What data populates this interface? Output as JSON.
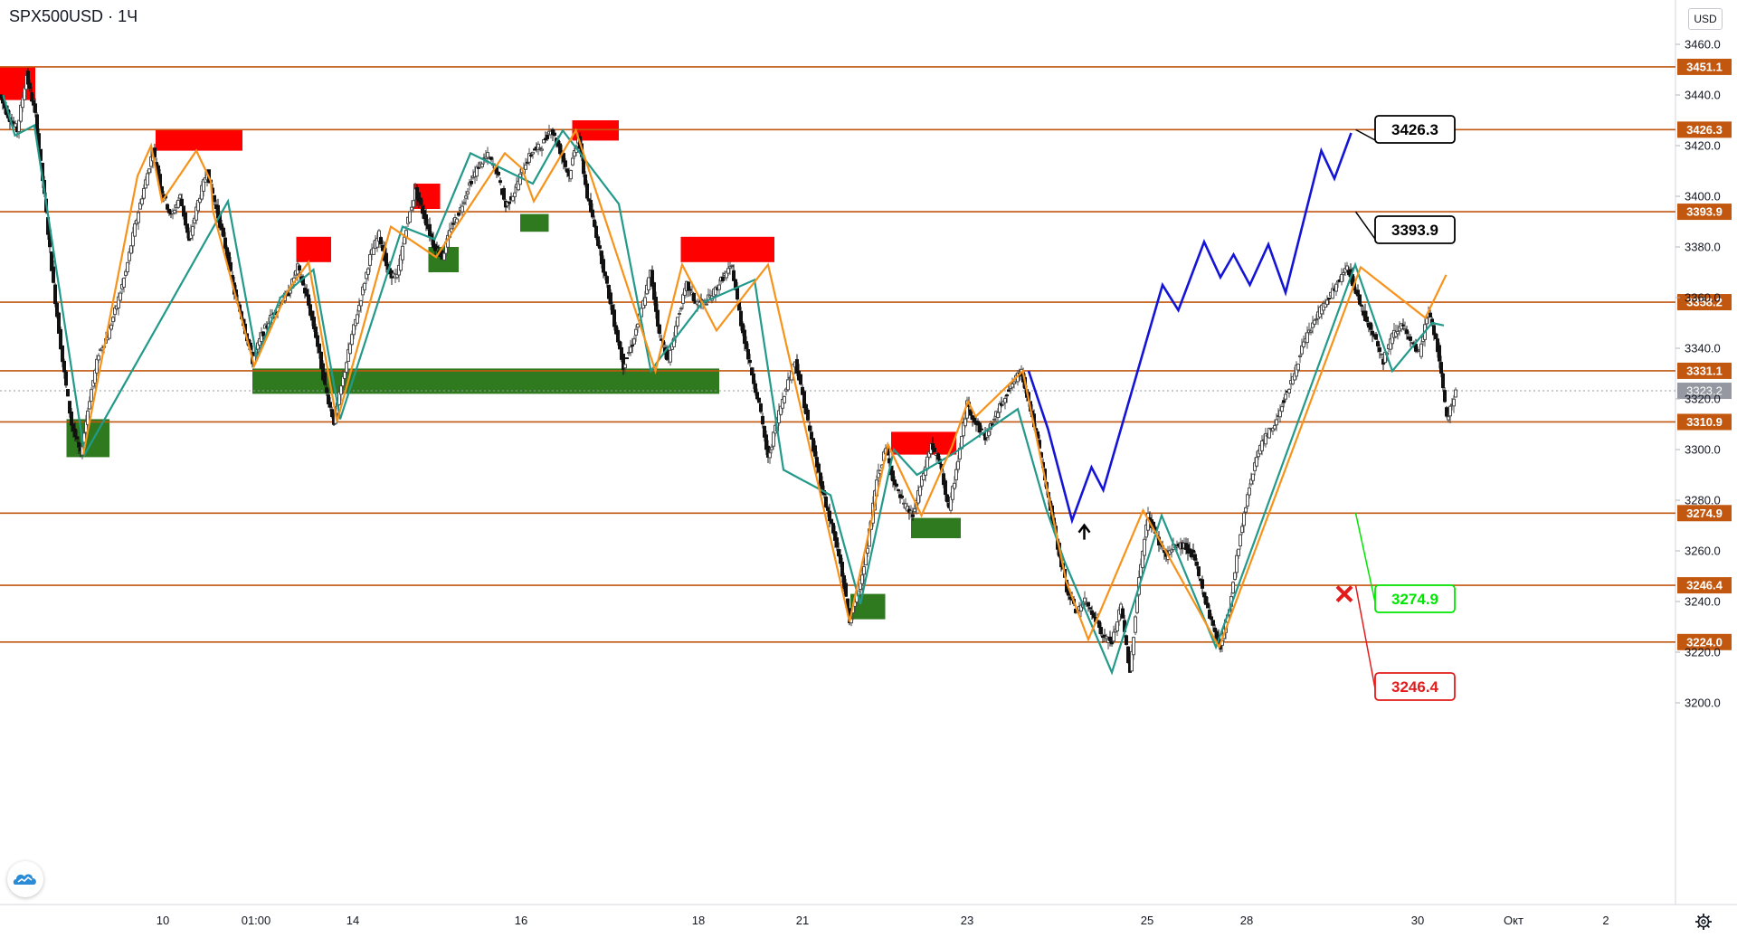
{
  "header": {
    "symbol": "SPX500USD",
    "separator": "·",
    "interval": "1Ч"
  },
  "price_axis": {
    "currency": "USD",
    "ticks": [
      "3460.0",
      "3440.0",
      "3420.0",
      "3400.0",
      "3380.0",
      "3360.0",
      "3340.0",
      "3320.0",
      "3300.0",
      "3280.0",
      "3260.0",
      "3240.0",
      "3220.0",
      "3200.0"
    ],
    "level_labels": [
      "3451.1",
      "3426.3",
      "3393.9",
      "3358.2",
      "3331.1",
      "3310.9",
      "3274.9",
      "3246.4",
      "3224.0"
    ],
    "current_price_label": "3323.2"
  },
  "time_axis": {
    "ticks": [
      "10",
      "01:00",
      "14",
      "16",
      "18",
      "21",
      "23",
      "25",
      "28",
      "30",
      "Окт",
      "2"
    ]
  },
  "callouts": {
    "target_high": "3426.3",
    "target_mid": "3393.9",
    "target_low": "3274.9",
    "stop": "3246.4"
  },
  "colors": {
    "level_line": "#c25710",
    "level_badge": "#c25710",
    "zigzag_orange": "#f7931a",
    "zigzag_teal": "#22998a",
    "forecast_blue": "#1414d6",
    "supply_red": "#ff0000",
    "demand_green": "#2f7a1f",
    "candle_up": "#555555",
    "candle_down": "#111111",
    "current_badge": "#9598a1",
    "callout_green": "#00e600",
    "callout_red": "#e31b1b"
  },
  "chart_data": {
    "type": "candlestick",
    "title": "",
    "symbol": "SPX500USD",
    "interval": "1Ч",
    "ylim": [
      3193,
      3476
    ],
    "x_ticks": [
      "10",
      "01:00",
      "14",
      "16",
      "18",
      "21",
      "23",
      "25",
      "28",
      "30",
      "Окт",
      "2"
    ],
    "horizontal_levels": [
      3451.1,
      3426.3,
      3393.9,
      3358.2,
      3331.1,
      3310.9,
      3274.9,
      3246.4,
      3224.0
    ],
    "current_price": 3323.2,
    "price_path": [
      [
        0,
        3440
      ],
      [
        0.2,
        3432
      ],
      [
        0.4,
        3426
      ],
      [
        0.6,
        3448
      ],
      [
        0.8,
        3432
      ],
      [
        1.0,
        3400
      ],
      [
        1.2,
        3365
      ],
      [
        1.4,
        3335
      ],
      [
        1.6,
        3310
      ],
      [
        1.8,
        3298
      ],
      [
        2.0,
        3320
      ],
      [
        2.2,
        3338
      ],
      [
        2.4,
        3345
      ],
      [
        2.6,
        3357
      ],
      [
        2.8,
        3370
      ],
      [
        3.0,
        3388
      ],
      [
        3.2,
        3403
      ],
      [
        3.4,
        3418
      ],
      [
        3.6,
        3402
      ],
      [
        3.8,
        3392
      ],
      [
        4.0,
        3400
      ],
      [
        4.2,
        3382
      ],
      [
        4.4,
        3398
      ],
      [
        4.6,
        3410
      ],
      [
        4.8,
        3395
      ],
      [
        5.0,
        3380
      ],
      [
        5.2,
        3362
      ],
      [
        5.4,
        3350
      ],
      [
        5.6,
        3335
      ],
      [
        5.8,
        3345
      ],
      [
        6.0,
        3352
      ],
      [
        6.2,
        3358
      ],
      [
        6.4,
        3362
      ],
      [
        6.6,
        3372
      ],
      [
        6.8,
        3360
      ],
      [
        7.0,
        3345
      ],
      [
        7.2,
        3325
      ],
      [
        7.4,
        3311
      ],
      [
        7.6,
        3328
      ],
      [
        7.8,
        3345
      ],
      [
        8.0,
        3360
      ],
      [
        8.2,
        3376
      ],
      [
        8.4,
        3385
      ],
      [
        8.6,
        3370
      ],
      [
        8.8,
        3368
      ],
      [
        9.0,
        3388
      ],
      [
        9.2,
        3402
      ],
      [
        9.4,
        3392
      ],
      [
        9.6,
        3381
      ],
      [
        9.8,
        3376
      ],
      [
        10.0,
        3388
      ],
      [
        10.2,
        3395
      ],
      [
        10.4,
        3405
      ],
      [
        10.6,
        3412
      ],
      [
        10.8,
        3416
      ],
      [
        11.0,
        3410
      ],
      [
        11.2,
        3396
      ],
      [
        11.4,
        3402
      ],
      [
        11.6,
        3412
      ],
      [
        11.8,
        3418
      ],
      [
        12.0,
        3420
      ],
      [
        12.2,
        3427
      ],
      [
        12.4,
        3418
      ],
      [
        12.6,
        3408
      ],
      [
        12.8,
        3424
      ],
      [
        13.0,
        3400
      ],
      [
        13.2,
        3385
      ],
      [
        13.4,
        3368
      ],
      [
        13.6,
        3350
      ],
      [
        13.8,
        3333
      ],
      [
        14.0,
        3342
      ],
      [
        14.2,
        3355
      ],
      [
        14.4,
        3370
      ],
      [
        14.6,
        3345
      ],
      [
        14.8,
        3335
      ],
      [
        15.0,
        3352
      ],
      [
        15.2,
        3365
      ],
      [
        15.4,
        3358
      ],
      [
        15.6,
        3358
      ],
      [
        15.8,
        3362
      ],
      [
        16.0,
        3368
      ],
      [
        16.2,
        3372
      ],
      [
        16.4,
        3350
      ],
      [
        16.6,
        3333
      ],
      [
        16.8,
        3318
      ],
      [
        17.0,
        3296
      ],
      [
        17.2,
        3312
      ],
      [
        17.4,
        3325
      ],
      [
        17.6,
        3335
      ],
      [
        17.8,
        3318
      ],
      [
        18.0,
        3300
      ],
      [
        18.2,
        3284
      ],
      [
        18.4,
        3270
      ],
      [
        18.6,
        3255
      ],
      [
        18.8,
        3232
      ],
      [
        19.0,
        3245
      ],
      [
        19.2,
        3262
      ],
      [
        19.4,
        3288
      ],
      [
        19.6,
        3300
      ],
      [
        19.8,
        3286
      ],
      [
        20.0,
        3278
      ],
      [
        20.2,
        3274
      ],
      [
        20.4,
        3288
      ],
      [
        20.6,
        3302
      ],
      [
        20.8,
        3294
      ],
      [
        21.0,
        3276
      ],
      [
        21.2,
        3296
      ],
      [
        21.4,
        3318
      ],
      [
        21.6,
        3310
      ],
      [
        21.8,
        3305
      ],
      [
        22.0,
        3312
      ],
      [
        22.2,
        3320
      ],
      [
        22.4,
        3326
      ],
      [
        22.6,
        3331
      ],
      [
        22.8,
        3316
      ],
      [
        23.0,
        3300
      ],
      [
        23.2,
        3280
      ],
      [
        23.4,
        3262
      ],
      [
        23.6,
        3245
      ],
      [
        23.8,
        3236
      ],
      [
        24.0,
        3240
      ],
      [
        24.2,
        3235
      ],
      [
        24.4,
        3226
      ],
      [
        24.6,
        3224
      ],
      [
        24.8,
        3238
      ],
      [
        25.0,
        3212
      ],
      [
        25.2,
        3250
      ],
      [
        25.4,
        3274
      ],
      [
        25.6,
        3265
      ],
      [
        25.8,
        3258
      ],
      [
        26.0,
        3262
      ],
      [
        26.2,
        3262
      ],
      [
        26.4,
        3258
      ],
      [
        26.6,
        3245
      ],
      [
        26.8,
        3232
      ],
      [
        27.0,
        3222
      ],
      [
        27.2,
        3238
      ],
      [
        27.4,
        3262
      ],
      [
        27.6,
        3282
      ],
      [
        27.8,
        3298
      ],
      [
        28.0,
        3305
      ],
      [
        28.2,
        3310
      ],
      [
        28.4,
        3320
      ],
      [
        28.6,
        3328
      ],
      [
        28.8,
        3340
      ],
      [
        29.0,
        3348
      ],
      [
        29.2,
        3355
      ],
      [
        29.4,
        3360
      ],
      [
        29.6,
        3366
      ],
      [
        29.8,
        3372
      ],
      [
        30.0,
        3362
      ],
      [
        30.2,
        3352
      ],
      [
        30.4,
        3345
      ],
      [
        30.6,
        3335
      ],
      [
        30.8,
        3345
      ],
      [
        31.0,
        3350
      ],
      [
        31.2,
        3342
      ],
      [
        31.4,
        3338
      ],
      [
        31.6,
        3355
      ],
      [
        31.8,
        3340
      ],
      [
        32.0,
        3312
      ],
      [
        32.2,
        3323
      ]
    ],
    "zigzag_orange": [
      [
        1.84,
        3298
      ],
      [
        3.04,
        3408
      ],
      [
        3.34,
        3420
      ],
      [
        3.58,
        3398
      ],
      [
        4.34,
        3418
      ],
      [
        4.66,
        3406
      ],
      [
        4.71,
        3394
      ],
      [
        5.62,
        3333
      ],
      [
        6.34,
        3362
      ],
      [
        6.82,
        3374
      ],
      [
        7.45,
        3311
      ],
      [
        8.64,
        3388
      ],
      [
        9.64,
        3376
      ],
      [
        11.16,
        3417
      ],
      [
        11.54,
        3411
      ],
      [
        11.8,
        3398
      ],
      [
        12.73,
        3426
      ],
      [
        14.49,
        3331
      ],
      [
        15.08,
        3373
      ],
      [
        15.84,
        3347
      ],
      [
        16.98,
        3373
      ],
      [
        18.78,
        3232
      ],
      [
        19.63,
        3302
      ],
      [
        20.37,
        3274
      ],
      [
        21.04,
        3301
      ],
      [
        21.4,
        3319
      ],
      [
        21.57,
        3313
      ],
      [
        22.61,
        3331
      ],
      [
        23.57,
        3248
      ],
      [
        24.06,
        3225
      ],
      [
        25.27,
        3276
      ],
      [
        26.95,
        3222
      ],
      [
        30.08,
        3372
      ],
      [
        31.51,
        3352
      ],
      [
        31.97,
        3369
      ]
    ],
    "zigzag_teal": [
      [
        0.07,
        3440
      ],
      [
        0.33,
        3424
      ],
      [
        0.76,
        3428
      ],
      [
        1.87,
        3298
      ],
      [
        5.04,
        3398
      ],
      [
        5.68,
        3336
      ],
      [
        6.2,
        3360
      ],
      [
        6.93,
        3371
      ],
      [
        7.52,
        3312
      ],
      [
        8.9,
        3388
      ],
      [
        9.61,
        3383
      ],
      [
        10.4,
        3417
      ],
      [
        11.78,
        3405
      ],
      [
        12.44,
        3426
      ],
      [
        13.68,
        3397
      ],
      [
        14.39,
        3331
      ],
      [
        14.63,
        3337
      ],
      [
        15.53,
        3358
      ],
      [
        16.68,
        3367
      ],
      [
        17.32,
        3292
      ],
      [
        18.36,
        3282
      ],
      [
        19.02,
        3239
      ],
      [
        19.76,
        3300
      ],
      [
        20.27,
        3290
      ],
      [
        21.04,
        3298
      ],
      [
        22.5,
        3316
      ],
      [
        23.12,
        3277
      ],
      [
        23.53,
        3256
      ],
      [
        24.58,
        3212
      ],
      [
        25.68,
        3274
      ],
      [
        26.88,
        3222
      ],
      [
        29.96,
        3373
      ],
      [
        30.78,
        3331
      ],
      [
        31.66,
        3350
      ],
      [
        31.92,
        3349
      ]
    ],
    "forecast_path": [
      [
        22.74,
        3331
      ],
      [
        23.17,
        3308
      ],
      [
        23.7,
        3272
      ],
      [
        24.13,
        3293
      ],
      [
        24.39,
        3284
      ],
      [
        25.7,
        3365
      ],
      [
        26.05,
        3355
      ],
      [
        26.62,
        3382
      ],
      [
        26.98,
        3368
      ],
      [
        27.27,
        3377
      ],
      [
        27.63,
        3365
      ],
      [
        28.04,
        3381
      ],
      [
        28.42,
        3362
      ],
      [
        29.21,
        3418
      ],
      [
        29.5,
        3407
      ],
      [
        29.87,
        3425
      ]
    ],
    "supply_zones": [
      {
        "x0": 0.0,
        "x1": 0.78,
        "y0": 3451.1,
        "y1": 3438
      },
      {
        "x0": 3.44,
        "x1": 5.36,
        "y0": 3426.3,
        "y1": 3418
      },
      {
        "x0": 9.14,
        "x1": 9.73,
        "y0": 3405,
        "y1": 3395
      },
      {
        "x0": 6.55,
        "x1": 7.32,
        "y0": 3384,
        "y1": 3374
      },
      {
        "x0": 12.65,
        "x1": 13.68,
        "y0": 3430,
        "y1": 3422
      },
      {
        "x0": 15.05,
        "x1": 17.12,
        "y0": 3384,
        "y1": 3374
      },
      {
        "x0": 19.7,
        "x1": 21.14,
        "y0": 3307,
        "y1": 3298
      }
    ],
    "demand_zones": [
      {
        "x0": 1.47,
        "x1": 2.42,
        "y0": 3312,
        "y1": 3297
      },
      {
        "x0": 9.47,
        "x1": 10.14,
        "y0": 3380,
        "y1": 3370
      },
      {
        "x0": 11.5,
        "x1": 12.13,
        "y0": 3393,
        "y1": 3386
      },
      {
        "x0": 5.58,
        "x1": 15.9,
        "y0": 3332,
        "y1": 3322
      },
      {
        "x0": 18.8,
        "x1": 19.57,
        "y0": 3243,
        "y1": 3233
      },
      {
        "x0": 20.14,
        "x1": 21.24,
        "y0": 3273,
        "y1": 3265
      }
    ],
    "signals": [
      {
        "type": "buy-arrow",
        "x": 23.97,
        "y": 3268
      },
      {
        "type": "stop-cross",
        "x": 29.72,
        "y": 3243
      }
    ],
    "grid": false,
    "legend": "none"
  }
}
